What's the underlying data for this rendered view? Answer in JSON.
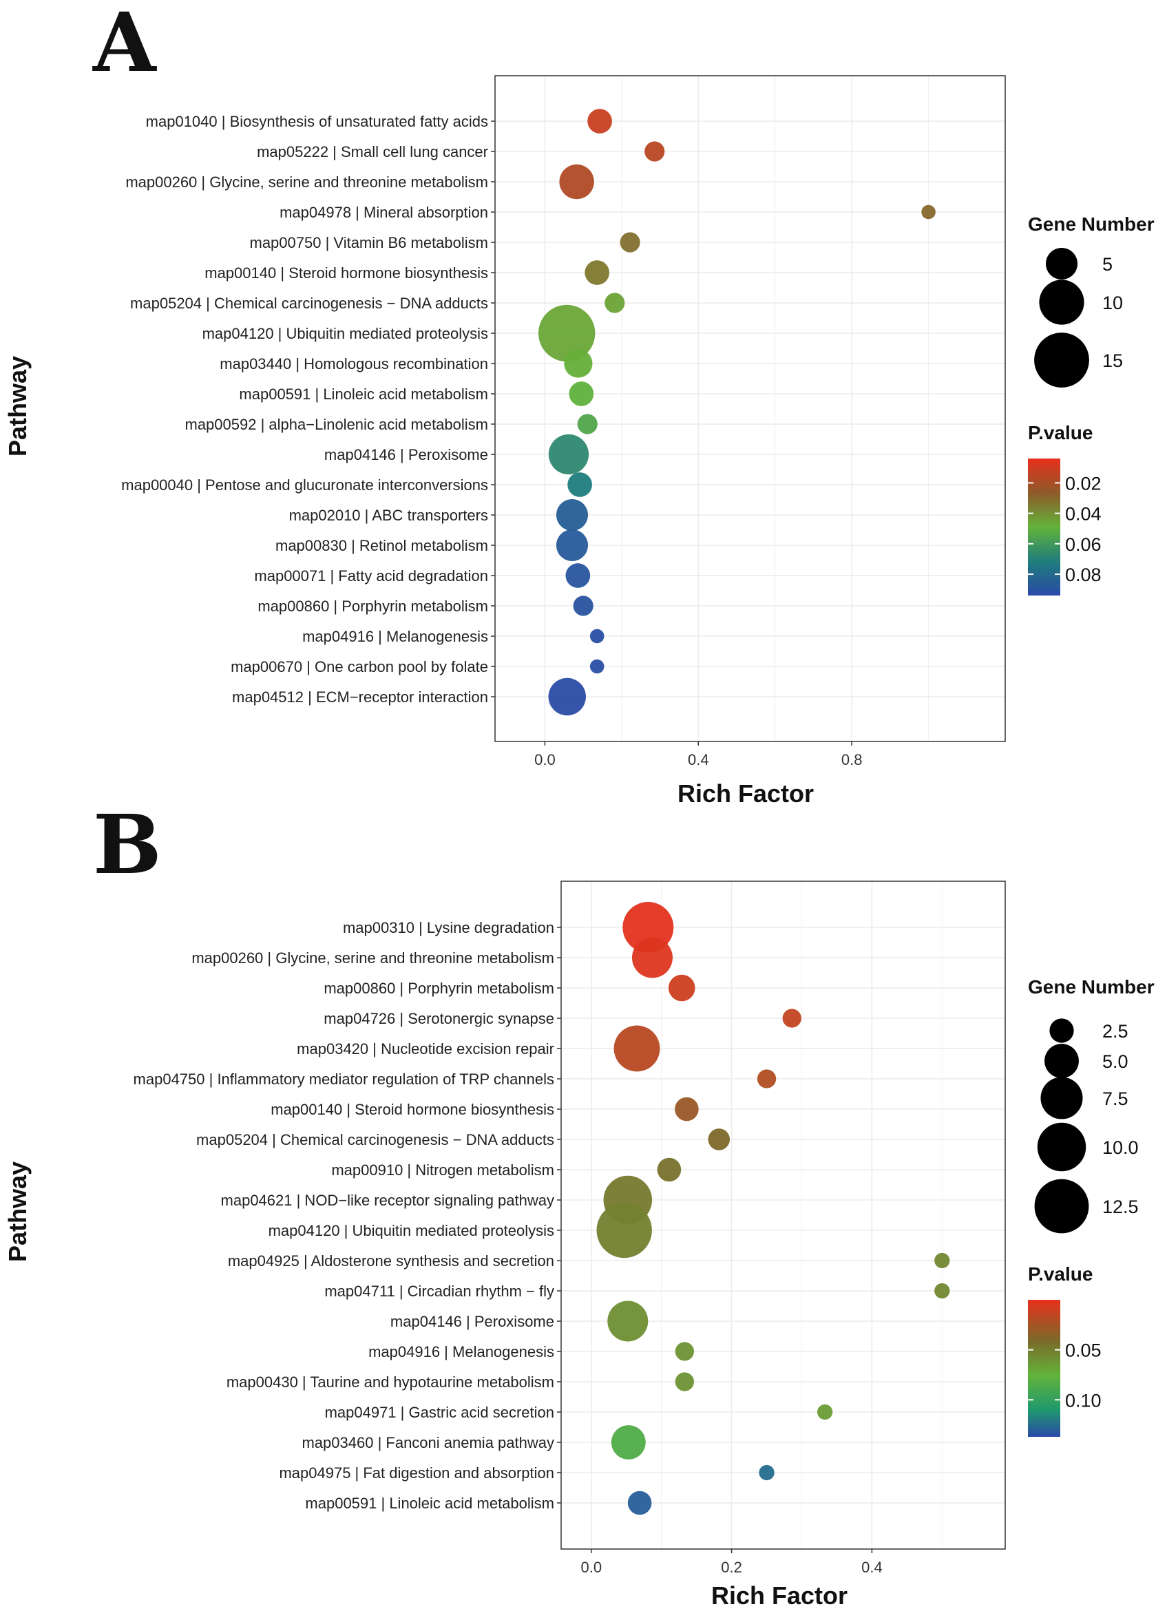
{
  "chart_data": [
    {
      "panel": "A",
      "type": "scatter",
      "xlabel": "Rich Factor",
      "ylabel": "Pathway",
      "xlim": [
        -0.13,
        1.2
      ],
      "xticks": [
        0.0,
        0.4,
        0.8
      ],
      "xtick_labels": [
        "0.0",
        "0.4",
        "0.8"
      ],
      "grid": true,
      "size_legend": {
        "title": "Gene Number",
        "values": [
          5,
          10,
          15
        ],
        "labels": [
          "5",
          "10",
          "15"
        ]
      },
      "color_legend": {
        "title": "P.value",
        "range": [
          0.004,
          0.094
        ],
        "ticks": [
          0.02,
          0.04,
          0.06,
          0.08
        ],
        "labels": [
          "0.02",
          "0.04",
          "0.06",
          "0.08"
        ]
      },
      "points": [
        {
          "label": "map01040 | Biosynthesis of unsaturated fatty acids",
          "rich_factor": 0.143,
          "gene_number": 3,
          "p_value": 0.012
        },
        {
          "label": "map05222 | Small cell lung cancer",
          "rich_factor": 0.286,
          "gene_number": 2,
          "p_value": 0.016
        },
        {
          "label": "map00260 | Glycine, serine and threonine metabolism",
          "rich_factor": 0.083,
          "gene_number": 6,
          "p_value": 0.018
        },
        {
          "label": "map04978 | Mineral absorption",
          "rich_factor": 1.0,
          "gene_number": 1,
          "p_value": 0.03
        },
        {
          "label": "map00750 | Vitamin B6 metabolism",
          "rich_factor": 0.222,
          "gene_number": 2,
          "p_value": 0.032
        },
        {
          "label": "map00140 | Steroid hormone biosynthesis",
          "rich_factor": 0.136,
          "gene_number": 3,
          "p_value": 0.034
        },
        {
          "label": "map05204 | Chemical carcinogenesis − DNA adducts",
          "rich_factor": 0.182,
          "gene_number": 2,
          "p_value": 0.045
        },
        {
          "label": "map04120 | Ubiquitin mediated proteolysis",
          "rich_factor": 0.057,
          "gene_number": 16,
          "p_value": 0.046
        },
        {
          "label": "map03440 | Homologous recombination",
          "rich_factor": 0.087,
          "gene_number": 4,
          "p_value": 0.048
        },
        {
          "label": "map00591 | Linoleic acid metabolism",
          "rich_factor": 0.095,
          "gene_number": 3,
          "p_value": 0.05
        },
        {
          "label": "map00592 | alpha−Linolenic acid metabolism",
          "rich_factor": 0.111,
          "gene_number": 2,
          "p_value": 0.055
        },
        {
          "label": "map04146 | Peroxisome",
          "rich_factor": 0.062,
          "gene_number": 8,
          "p_value": 0.067
        },
        {
          "label": "map00040 | Pentose and glucuronate interconversions",
          "rich_factor": 0.091,
          "gene_number": 3,
          "p_value": 0.072
        },
        {
          "label": "map02010 | ABC transporters",
          "rich_factor": 0.071,
          "gene_number": 5,
          "p_value": 0.085
        },
        {
          "label": "map00830 | Retinol metabolism",
          "rich_factor": 0.071,
          "gene_number": 5,
          "p_value": 0.087
        },
        {
          "label": "map00071 | Fatty acid degradation",
          "rich_factor": 0.086,
          "gene_number": 3,
          "p_value": 0.089
        },
        {
          "label": "map00860 | Porphyrin metabolism",
          "rich_factor": 0.1,
          "gene_number": 2,
          "p_value": 0.09
        },
        {
          "label": "map04916 | Melanogenesis",
          "rich_factor": 0.136,
          "gene_number": 1,
          "p_value": 0.092
        },
        {
          "label": "map00670 | One carbon pool by folate",
          "rich_factor": 0.136,
          "gene_number": 1,
          "p_value": 0.092
        },
        {
          "label": "map04512 | ECM−receptor interaction",
          "rich_factor": 0.058,
          "gene_number": 7,
          "p_value": 0.093
        }
      ]
    },
    {
      "panel": "B",
      "type": "scatter",
      "xlabel": "Rich Factor",
      "ylabel": "Pathway",
      "xlim": [
        -0.043,
        0.59
      ],
      "xticks": [
        0.0,
        0.2,
        0.4
      ],
      "xtick_labels": [
        "0.0",
        "0.2",
        "0.4"
      ],
      "grid": true,
      "size_legend": {
        "title": "Gene Number",
        "values": [
          2.5,
          5.0,
          7.5,
          10.0,
          12.5
        ],
        "labels": [
          "2.5",
          "5.0",
          "7.5",
          "10.0",
          "12.5"
        ]
      },
      "color_legend": {
        "title": "P.value",
        "range": [
          0.0,
          0.137
        ],
        "ticks": [
          0.05,
          0.1
        ],
        "labels": [
          "0.05",
          "0.10"
        ]
      },
      "points": [
        {
          "label": "map00310 | Lysine degradation",
          "rich_factor": 0.081,
          "gene_number": 11,
          "p_value": 0.002
        },
        {
          "label": "map00260 | Glycine, serine and threonine metabolism",
          "rich_factor": 0.087,
          "gene_number": 7,
          "p_value": 0.004
        },
        {
          "label": "map00860 | Porphyrin metabolism",
          "rich_factor": 0.129,
          "gene_number": 3,
          "p_value": 0.01
        },
        {
          "label": "map04726 | Serotonergic synapse",
          "rich_factor": 0.286,
          "gene_number": 1.5,
          "p_value": 0.014
        },
        {
          "label": "map03420 | Nucleotide excision repair",
          "rich_factor": 0.065,
          "gene_number": 9,
          "p_value": 0.018
        },
        {
          "label": "map04750 | Inflammatory mediator regulation of TRP channels",
          "rich_factor": 0.25,
          "gene_number": 1.5,
          "p_value": 0.021
        },
        {
          "label": "map00140 | Steroid hormone biosynthesis",
          "rich_factor": 0.136,
          "gene_number": 2.4,
          "p_value": 0.029
        },
        {
          "label": "map05204 | Chemical carcinogenesis − DNA adducts",
          "rich_factor": 0.182,
          "gene_number": 2,
          "p_value": 0.04
        },
        {
          "label": "map00910 | Nitrogen metabolism",
          "rich_factor": 0.111,
          "gene_number": 2.4,
          "p_value": 0.045
        },
        {
          "label": "map04621 | NOD−like receptor signaling pathway",
          "rich_factor": 0.052,
          "gene_number": 10,
          "p_value": 0.048
        },
        {
          "label": "map04120 | Ubiquitin mediated proteolysis",
          "rich_factor": 0.047,
          "gene_number": 13,
          "p_value": 0.052
        },
        {
          "label": "map04925 | Aldosterone synthesis and secretion",
          "rich_factor": 0.5,
          "gene_number": 1,
          "p_value": 0.055
        },
        {
          "label": "map04711 | Circadian rhythm − fly",
          "rich_factor": 0.5,
          "gene_number": 1,
          "p_value": 0.055
        },
        {
          "label": "map04146 | Peroxisome",
          "rich_factor": 0.052,
          "gene_number": 7,
          "p_value": 0.058
        },
        {
          "label": "map04916 | Melanogenesis",
          "rich_factor": 0.133,
          "gene_number": 1.5,
          "p_value": 0.06
        },
        {
          "label": "map00430 | Taurine and hypotaurine metabolism",
          "rich_factor": 0.133,
          "gene_number": 1.5,
          "p_value": 0.06
        },
        {
          "label": "map04971 | Gastric acid secretion",
          "rich_factor": 0.333,
          "gene_number": 1,
          "p_value": 0.065
        },
        {
          "label": "map03460 | Fanconi anemia pathway",
          "rich_factor": 0.053,
          "gene_number": 5,
          "p_value": 0.085
        },
        {
          "label": "map04975 | Fat digestion and absorption",
          "rich_factor": 0.25,
          "gene_number": 1,
          "p_value": 0.125
        },
        {
          "label": "map00591 | Linoleic acid metabolism",
          "rich_factor": 0.069,
          "gene_number": 2.4,
          "p_value": 0.13
        }
      ]
    }
  ]
}
